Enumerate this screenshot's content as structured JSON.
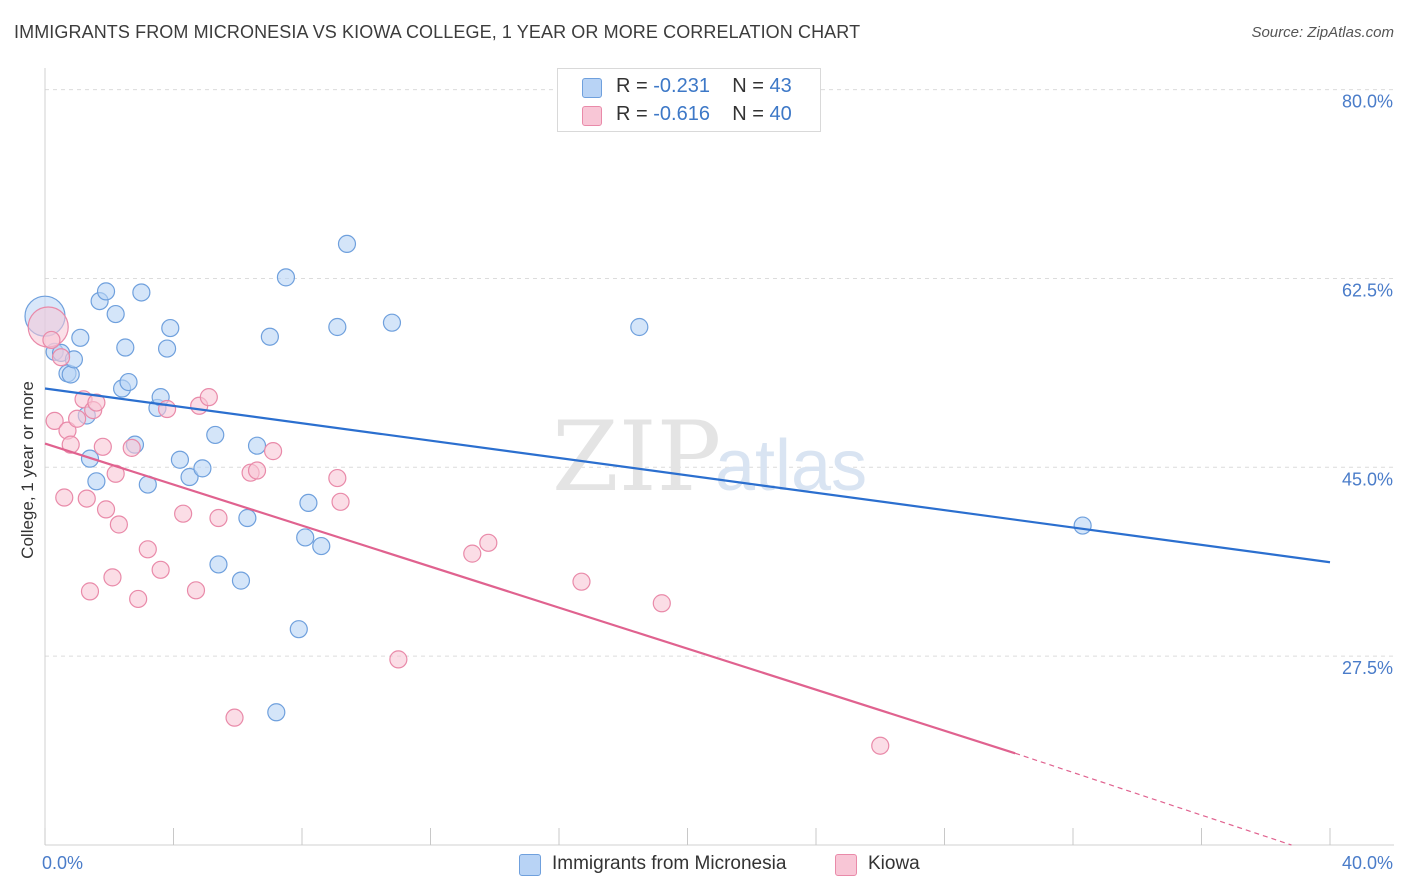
{
  "header": {
    "title": "IMMIGRANTS FROM MICRONESIA VS KIOWA COLLEGE, 1 YEAR OR MORE CORRELATION CHART",
    "source": "Source: ZipAtlas.com"
  },
  "legend": {
    "rows": [
      {
        "r_label": "R =",
        "r_value": "-0.231",
        "n_label": "N =",
        "n_value": "43"
      },
      {
        "r_label": "R =",
        "r_value": "-0.616",
        "n_label": "N =",
        "n_value": "40"
      }
    ]
  },
  "bottom_legend": [
    "Immigrants from Micronesia",
    "Kiowa"
  ],
  "colors": {
    "blue_fill": "#b8d3f5",
    "blue_stroke": "#6fa0dd",
    "blue_line": "#2b6fcf",
    "pink_fill": "#f8c6d6",
    "pink_stroke": "#e98aa9",
    "pink_line": "#e0628f",
    "tick_text": "#4a7cc9",
    "grid": "#dcdcdc"
  },
  "chart_data": {
    "type": "scatter",
    "title": "IMMIGRANTS FROM MICRONESIA VS KIOWA COLLEGE, 1 YEAR OR MORE CORRELATION CHART",
    "xlabel": "",
    "ylabel": "College, 1 year or more",
    "xlim": [
      0,
      40
    ],
    "ylim": [
      10,
      82
    ],
    "x_tick_labels": [
      "0.0%",
      "40.0%"
    ],
    "y_ticks": [
      27.5,
      45.0,
      62.5,
      80.0
    ],
    "y_tick_labels": [
      "27.5%",
      "45.0%",
      "62.5%",
      "80.0%"
    ],
    "grid": true,
    "legend_position": "top-center",
    "series": [
      {
        "name": "Immigrants from Micronesia",
        "r": -0.231,
        "n": 43,
        "trend": {
          "x": [
            0,
            40
          ],
          "y": [
            52.3,
            36.2
          ]
        },
        "points": [
          {
            "x": 0.0,
            "y": 59.0,
            "big": true
          },
          {
            "x": 0.3,
            "y": 55.7
          },
          {
            "x": 0.5,
            "y": 55.6
          },
          {
            "x": 0.7,
            "y": 53.7
          },
          {
            "x": 0.8,
            "y": 53.6
          },
          {
            "x": 0.9,
            "y": 55.0
          },
          {
            "x": 1.1,
            "y": 57.0
          },
          {
            "x": 1.3,
            "y": 49.8
          },
          {
            "x": 1.4,
            "y": 45.8
          },
          {
            "x": 1.6,
            "y": 43.7
          },
          {
            "x": 1.7,
            "y": 60.4
          },
          {
            "x": 1.9,
            "y": 61.3
          },
          {
            "x": 2.2,
            "y": 59.2
          },
          {
            "x": 2.4,
            "y": 52.3
          },
          {
            "x": 2.5,
            "y": 56.1
          },
          {
            "x": 2.6,
            "y": 52.9
          },
          {
            "x": 2.8,
            "y": 47.1
          },
          {
            "x": 3.0,
            "y": 61.2
          },
          {
            "x": 3.2,
            "y": 43.4
          },
          {
            "x": 3.5,
            "y": 50.5
          },
          {
            "x": 3.6,
            "y": 51.5
          },
          {
            "x": 3.8,
            "y": 56.0
          },
          {
            "x": 3.9,
            "y": 57.9
          },
          {
            "x": 4.2,
            "y": 45.7
          },
          {
            "x": 4.5,
            "y": 44.1
          },
          {
            "x": 4.9,
            "y": 44.9
          },
          {
            "x": 5.3,
            "y": 48.0
          },
          {
            "x": 5.4,
            "y": 36.0
          },
          {
            "x": 6.1,
            "y": 34.5
          },
          {
            "x": 6.3,
            "y": 40.3
          },
          {
            "x": 6.6,
            "y": 47.0
          },
          {
            "x": 7.0,
            "y": 57.1
          },
          {
            "x": 7.2,
            "y": 22.3
          },
          {
            "x": 7.5,
            "y": 62.6
          },
          {
            "x": 7.9,
            "y": 30.0
          },
          {
            "x": 8.1,
            "y": 38.5
          },
          {
            "x": 8.2,
            "y": 41.7
          },
          {
            "x": 8.6,
            "y": 37.7
          },
          {
            "x": 9.1,
            "y": 58.0
          },
          {
            "x": 9.4,
            "y": 65.7
          },
          {
            "x": 10.8,
            "y": 58.4
          },
          {
            "x": 18.5,
            "y": 58.0
          },
          {
            "x": 32.3,
            "y": 39.6
          }
        ]
      },
      {
        "name": "Kiowa",
        "r": -0.616,
        "n": 40,
        "trend": {
          "x": [
            0,
            30.2
          ],
          "y": [
            47.2,
            18.5
          ]
        },
        "trend_extension": {
          "x": [
            30.2,
            38.8
          ],
          "y": [
            18.5,
            10.0
          ]
        },
        "points": [
          {
            "x": 0.1,
            "y": 58.0,
            "big": true
          },
          {
            "x": 0.2,
            "y": 56.8
          },
          {
            "x": 0.3,
            "y": 49.3
          },
          {
            "x": 0.5,
            "y": 55.2
          },
          {
            "x": 0.6,
            "y": 42.2
          },
          {
            "x": 0.7,
            "y": 48.4
          },
          {
            "x": 0.8,
            "y": 47.1
          },
          {
            "x": 1.0,
            "y": 49.5
          },
          {
            "x": 1.2,
            "y": 51.3
          },
          {
            "x": 1.3,
            "y": 42.1
          },
          {
            "x": 1.4,
            "y": 33.5
          },
          {
            "x": 1.5,
            "y": 50.3
          },
          {
            "x": 1.6,
            "y": 51.0
          },
          {
            "x": 1.8,
            "y": 46.9
          },
          {
            "x": 1.9,
            "y": 41.1
          },
          {
            "x": 2.1,
            "y": 34.8
          },
          {
            "x": 2.2,
            "y": 44.4
          },
          {
            "x": 2.3,
            "y": 39.7
          },
          {
            "x": 2.7,
            "y": 46.8
          },
          {
            "x": 2.9,
            "y": 32.8
          },
          {
            "x": 3.2,
            "y": 37.4
          },
          {
            "x": 3.6,
            "y": 35.5
          },
          {
            "x": 3.8,
            "y": 50.4
          },
          {
            "x": 4.3,
            "y": 40.7
          },
          {
            "x": 4.7,
            "y": 33.6
          },
          {
            "x": 4.8,
            "y": 50.7
          },
          {
            "x": 5.1,
            "y": 51.5
          },
          {
            "x": 5.4,
            "y": 40.3
          },
          {
            "x": 5.9,
            "y": 21.8
          },
          {
            "x": 6.4,
            "y": 44.5
          },
          {
            "x": 6.6,
            "y": 44.7
          },
          {
            "x": 7.1,
            "y": 46.5
          },
          {
            "x": 9.1,
            "y": 44.0
          },
          {
            "x": 9.2,
            "y": 41.8
          },
          {
            "x": 11.0,
            "y": 27.2
          },
          {
            "x": 13.3,
            "y": 37.0
          },
          {
            "x": 13.8,
            "y": 38.0
          },
          {
            "x": 16.7,
            "y": 34.4
          },
          {
            "x": 19.2,
            "y": 32.4
          },
          {
            "x": 26.0,
            "y": 19.2
          }
        ]
      }
    ]
  }
}
